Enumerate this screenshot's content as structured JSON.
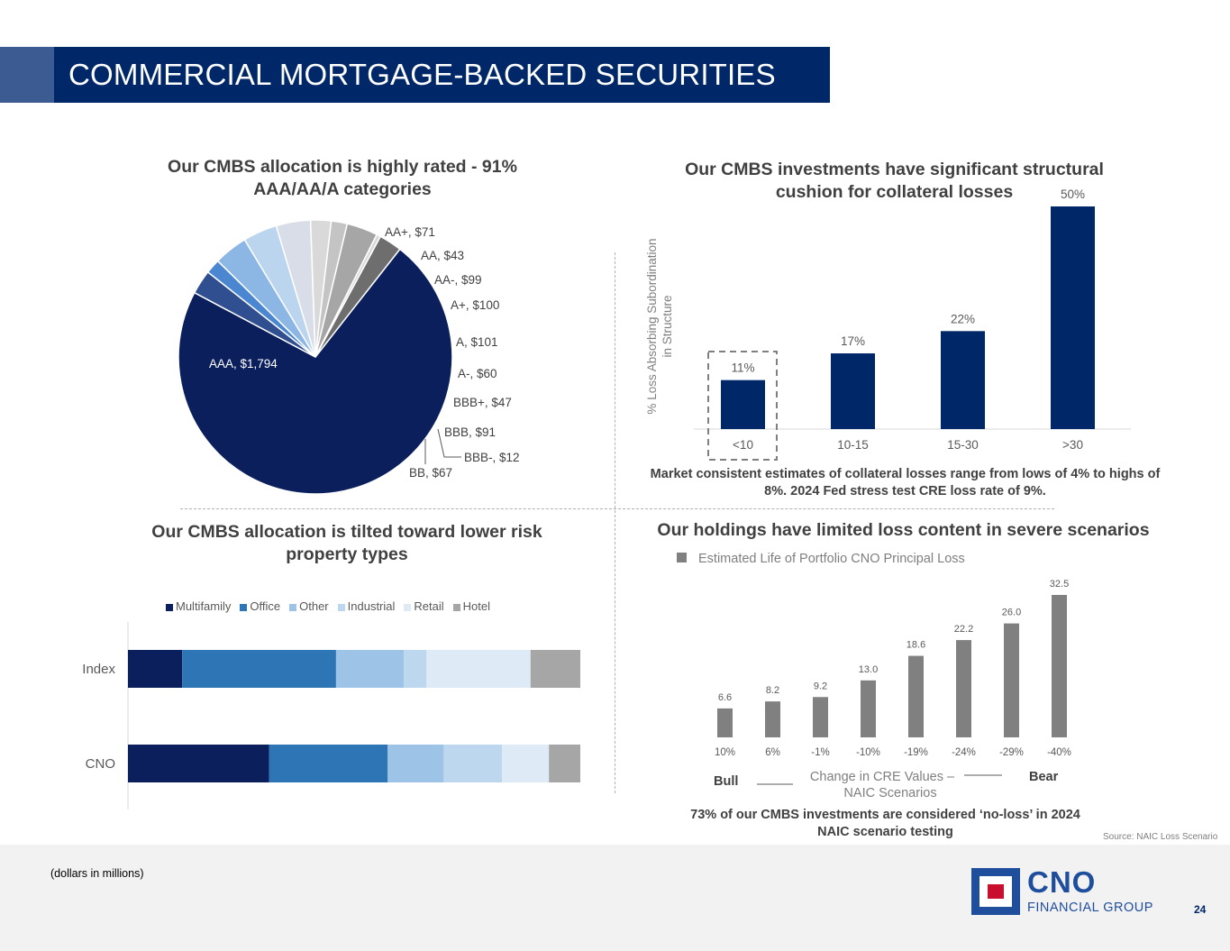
{
  "header": {
    "title": "COMMERCIAL MORTGAGE-BACKED SECURITIES"
  },
  "colors": {
    "navy": "#002868",
    "accent": "#3b5b92",
    "gray_bar": "#808080"
  },
  "panels": {
    "ratings_title": "Our CMBS allocation is highly rated - 91% AAA/AA/A categories",
    "subordination_title": "Our CMBS investments have significant structural cushion for collateral losses",
    "subordination_note": "Market consistent estimates of collateral losses range from lows of 4% to highs of 8%. 2024 Fed stress test CRE loss rate of 9%.",
    "property_title": "Our CMBS allocation is tilted toward lower risk property types",
    "loss_title": "Our holdings have limited loss content in severe scenarios",
    "loss_note": "73% of our CMBS investments are considered ‘no-loss’ in 2024 NAIC scenario testing"
  },
  "chart_data": [
    {
      "type": "pie",
      "labels": [
        "AAA",
        "AA+",
        "AA",
        "AA-",
        "A+",
        "A",
        "A-",
        "BBB+",
        "BBB",
        "BBB-",
        "BB"
      ],
      "values": [
        1794,
        71,
        43,
        99,
        100,
        101,
        60,
        47,
        91,
        12,
        67
      ],
      "data_labels": [
        "AAA,  $1,794",
        "AA+,  $71",
        "AA,  $43",
        "AA-,  $99",
        "A+,  $100",
        "A,  $101",
        "A-,  $60",
        "BBB+,  $47",
        "BBB,  $91",
        "BBB-,  $12",
        "BB,  $67"
      ],
      "colors": [
        "#0b1f5c",
        "#2f4f91",
        "#4a87d0",
        "#8cb6e3",
        "#bcd5ef",
        "#d9dde8",
        "#d9d9d9",
        "#c4c4c4",
        "#a6a6a6",
        "#d9d9d9",
        "#6e6e6e"
      ]
    },
    {
      "type": "bar",
      "categories": [
        "<10",
        "10-15",
        "15-30",
        ">30"
      ],
      "values": [
        11,
        17,
        22,
        50
      ],
      "data_labels": [
        "11%",
        "17%",
        "22%",
        "50%"
      ],
      "ylabel": "% Loss Absorbing Subordination in Structure",
      "ylim": [
        0,
        50
      ],
      "color": "#002868"
    },
    {
      "type": "bar",
      "orientation": "horizontal",
      "stacked": true,
      "categories": [
        "Index",
        "CNO"
      ],
      "series": [
        {
          "name": "Multifamily",
          "values": [
            12,
            31.5
          ],
          "color": "#0b1f5c"
        },
        {
          "name": "Office",
          "values": [
            34,
            26.5
          ],
          "color": "#2e75b6"
        },
        {
          "name": "Other",
          "values": [
            15,
            12.5
          ],
          "color": "#9dc3e6"
        },
        {
          "name": "Industrial",
          "values": [
            5,
            13
          ],
          "color": "#bdd7ee"
        },
        {
          "name": "Retail",
          "values": [
            23,
            10.5
          ],
          "color": "#deebf7"
        },
        {
          "name": "Hotel",
          "values": [
            11,
            7
          ],
          "color": "#a6a6a6"
        }
      ],
      "legend": "top"
    },
    {
      "type": "bar",
      "categories": [
        "10%",
        "6%",
        "-1%",
        "-10%",
        "-19%",
        "-24%",
        "-29%",
        "-40%"
      ],
      "values": [
        6.6,
        8.2,
        9.2,
        13.0,
        18.6,
        22.2,
        26.0,
        32.5
      ],
      "data_labels": [
        "6.6",
        "8.2",
        "9.2",
        "13.0",
        "18.6",
        "22.2",
        "26.0",
        "32.5"
      ],
      "legend_entry": "Estimated Life of Portfolio CNO Principal Loss",
      "xlabel": "Change in CRE Values – NAIC Scenarios",
      "xlabel_lines": [
        "Change in CRE Values –",
        "NAIC Scenarios"
      ],
      "left_label": "Bull",
      "right_label": "Bear",
      "color": "#808080"
    }
  ],
  "footer": {
    "note": "(dollars in millions)",
    "source": "Source: NAIC Loss Scenario",
    "page": "24",
    "logo_name": "CNO",
    "logo_sub": "FINANCIAL GROUP"
  }
}
